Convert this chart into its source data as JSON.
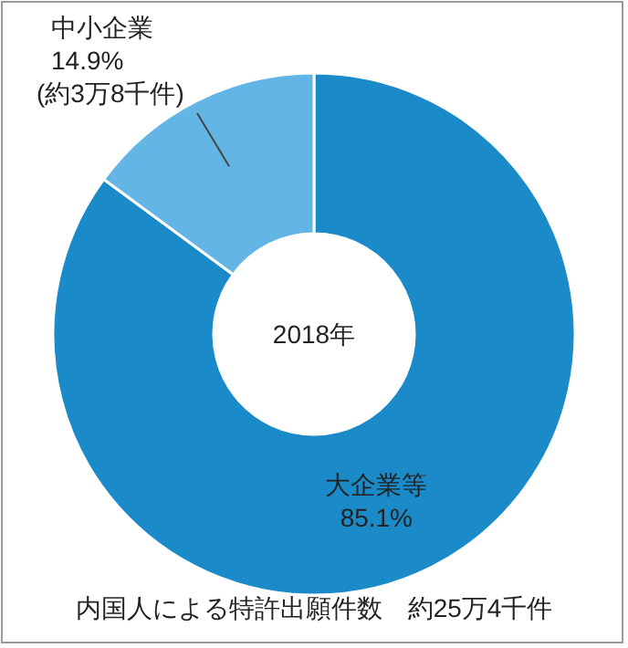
{
  "chart_data": {
    "type": "donut",
    "title": "内国人による特許出願件数　約25万4千件",
    "categories": [
      "大企業等",
      "中小企業"
    ],
    "values": [
      85.1,
      14.9
    ],
    "colors": [
      "#1a8ac8",
      "#62b5e5"
    ],
    "value_labels": [
      "85.1%",
      "14.9%"
    ],
    "annotations": [
      "2018年",
      "(約3万8千件)"
    ]
  }
}
